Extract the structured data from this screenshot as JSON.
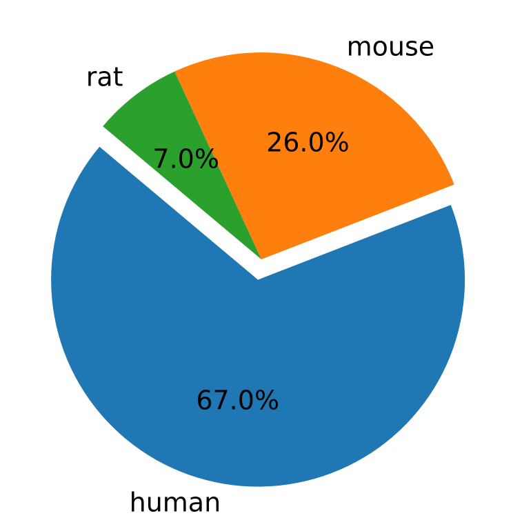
{
  "chart_data": {
    "type": "pie",
    "slices": [
      {
        "label": "human",
        "value": 67.0,
        "pct_text": "67.0%",
        "color": "#1f77b4",
        "exploded": true
      },
      {
        "label": "mouse",
        "value": 26.0,
        "pct_text": "26.0%",
        "color": "#ff7f0e",
        "exploded": false
      },
      {
        "label": "rat",
        "value": 7.0,
        "pct_text": "7.0%",
        "color": "#2ca02c",
        "exploded": false
      }
    ],
    "start_angle_deg": 140,
    "direction": "counterclockwise"
  }
}
